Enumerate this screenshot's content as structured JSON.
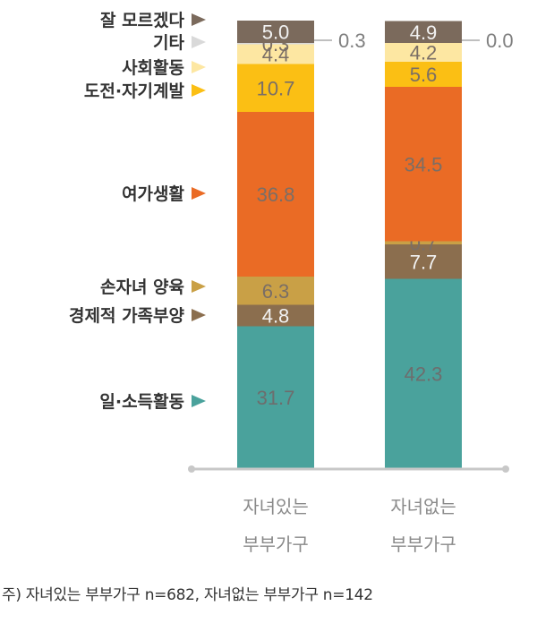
{
  "chart_data": {
    "type": "bar",
    "stacked": true,
    "percent_stacked": true,
    "categories": [
      [
        "자녀있는",
        "부부가구"
      ],
      [
        "자녀없는",
        "부부가구"
      ]
    ],
    "series": [
      {
        "name": "일·소득활동",
        "color": "#4aa29c",
        "values": [
          31.7,
          42.3
        ]
      },
      {
        "name": "경제적 가족부양",
        "color": "#8b6e4e",
        "values": [
          4.8,
          7.7
        ]
      },
      {
        "name": "손자녀 양육",
        "color": "#c9a046",
        "values": [
          6.3,
          0.7
        ]
      },
      {
        "name": "여가생활",
        "color": "#ea6b25",
        "values": [
          36.8,
          34.5
        ]
      },
      {
        "name": "도전·자기계발",
        "color": "#fbbf14",
        "values": [
          10.7,
          5.6
        ]
      },
      {
        "name": "사회활동",
        "color": "#fde7a2",
        "values": [
          4.4,
          4.2
        ]
      },
      {
        "name": "기타",
        "color": "#d9d9d9",
        "values": [
          0.3,
          0.0
        ]
      },
      {
        "name": "잘 모르겠다",
        "color": "#7b6a5c",
        "values": [
          5.0,
          4.9
        ]
      }
    ],
    "callouts": [
      "0.3",
      "0.0"
    ]
  },
  "footnote": "주) 자녀있는 부부가구 n=682, 자녀없는 부부가구 n=142"
}
